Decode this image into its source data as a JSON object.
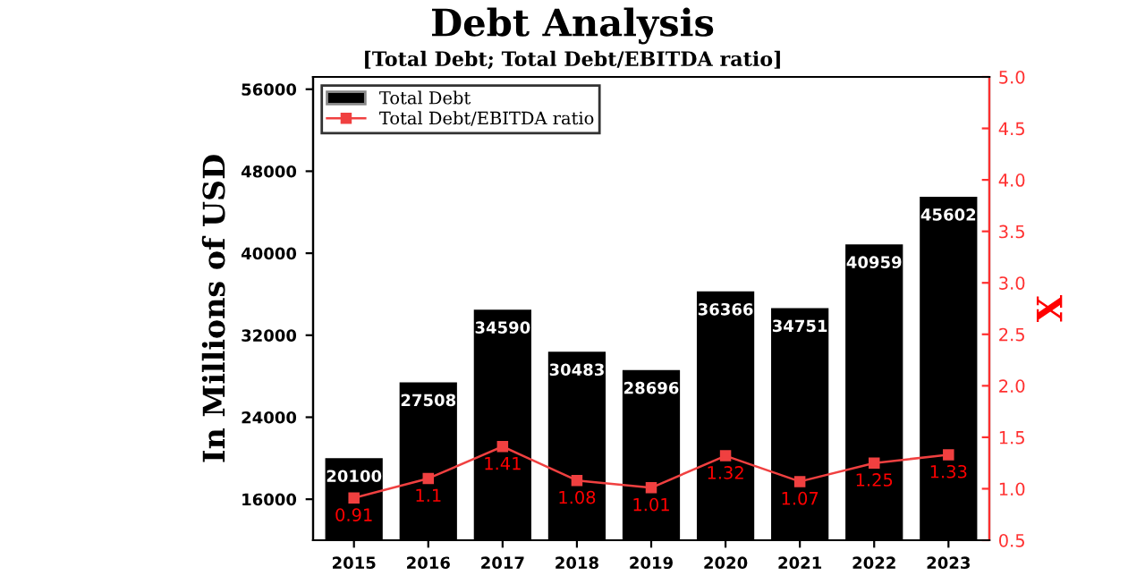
{
  "chart_data": {
    "type": "bar",
    "title": "Debt Analysis",
    "subtitle": "[Total Debt; Total Debt/EBITDA ratio]",
    "ylabel": "In Millions of USD",
    "y2label": "X",
    "categories": [
      "2015",
      "2016",
      "2017",
      "2018",
      "2019",
      "2020",
      "2021",
      "2022",
      "2023"
    ],
    "series": [
      {
        "name": "Total Debt",
        "color": "#000000",
        "values": [
          20100,
          27508,
          34590,
          30483,
          28696,
          36366,
          34751,
          40959,
          45602
        ]
      },
      {
        "name": "Total Debt/EBITDA ratio",
        "type": "line",
        "axis": "y2",
        "color": "#f04040",
        "marker": "square",
        "values": [
          0.91,
          1.1,
          1.41,
          1.08,
          1.01,
          1.32,
          1.07,
          1.25,
          1.33
        ]
      }
    ],
    "ylim": [
      12000,
      57200
    ],
    "yticks": [
      16000,
      24000,
      32000,
      40000,
      48000,
      56000
    ],
    "y2lim": [
      0.5,
      5.0
    ],
    "y2ticks": [
      {
        "value": 0.5,
        "label": "0.5"
      },
      {
        "value": 1.0,
        "label": "1.0"
      },
      {
        "value": 1.5,
        "label": "1.5"
      },
      {
        "value": 2.0,
        "label": "2.0"
      },
      {
        "value": 2.5,
        "label": "2.5"
      },
      {
        "value": 3.0,
        "label": "3.0"
      },
      {
        "value": 3.5,
        "label": "3.5"
      },
      {
        "value": 4.0,
        "label": "4.0"
      },
      {
        "value": 4.5,
        "label": "4.5"
      },
      {
        "value": 5.0,
        "label": "5.0"
      }
    ],
    "data_labels": true,
    "legend": "top left",
    "grid": false
  }
}
